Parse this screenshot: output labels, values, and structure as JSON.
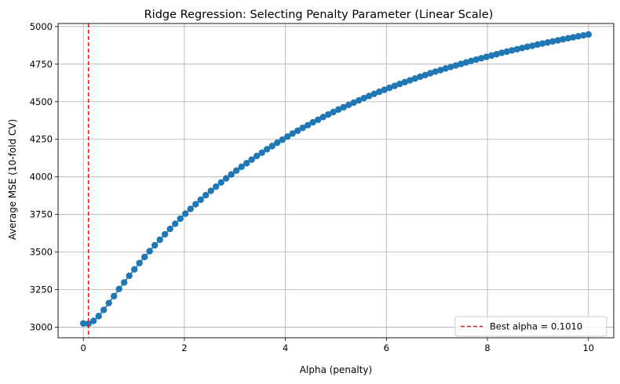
{
  "chart_data": {
    "type": "line",
    "title": "Ridge Regression: Selecting Penalty Parameter (Linear Scale)",
    "xlabel": "Alpha (penalty)",
    "ylabel": "Average MSE (10-fold CV)",
    "xlim": [
      -0.5,
      10.5
    ],
    "ylim": [
      2930,
      5020
    ],
    "grid": true,
    "legend_position": "lower-right",
    "x_ticks": [
      0,
      2,
      4,
      6,
      8,
      10
    ],
    "x_tick_labels": [
      "0",
      "2",
      "4",
      "6",
      "8",
      "10"
    ],
    "y_ticks": [
      3000,
      3250,
      3500,
      3750,
      4000,
      4250,
      4500,
      4750,
      5000
    ],
    "y_tick_labels": [
      "3000",
      "3250",
      "3500",
      "3750",
      "4000",
      "4250",
      "4500",
      "4750",
      "5000"
    ],
    "series": [
      {
        "color": "#1f77b4",
        "marker": "circle",
        "x": [
          0,
          0.1010101,
          0.2020202,
          0.3030303,
          0.4040404,
          0.5050505,
          0.6060606,
          0.7070707,
          0.8080808,
          0.9090909,
          1.010101,
          1.1111111,
          1.2121212,
          1.3131313,
          1.4141414,
          1.5151515,
          1.6161616,
          1.7171717,
          1.8181818,
          1.9191919,
          2.020202,
          2.1212121,
          2.2222222,
          2.3232323,
          2.4242424,
          2.5252525,
          2.6262626,
          2.7272727,
          2.8282828,
          2.9292929,
          3.030303,
          3.1313131,
          3.2323232,
          3.3333333,
          3.4343434,
          3.5353535,
          3.6363636,
          3.7373737,
          3.8383838,
          3.9393939,
          4.040404,
          4.1414141,
          4.2424242,
          4.3434343,
          4.4444444,
          4.5454545,
          4.6464646,
          4.7474747,
          4.8484848,
          4.9494949,
          5.0505051,
          5.1515152,
          5.2525253,
          5.3535354,
          5.4545455,
          5.5555556,
          5.6565657,
          5.7575758,
          5.8585859,
          5.959596,
          6.0606061,
          6.1616162,
          6.2626263,
          6.3636364,
          6.4646465,
          6.5656566,
          6.6666667,
          6.7676768,
          6.8686869,
          6.969697,
          7.0707071,
          7.1717172,
          7.2727273,
          7.3737374,
          7.4747475,
          7.5757576,
          7.6767677,
          7.7777778,
          7.8787879,
          7.979798,
          8.0808081,
          8.1818182,
          8.2828283,
          8.3838384,
          8.4848485,
          8.5858586,
          8.6868687,
          8.7878788,
          8.8888889,
          8.989899,
          9.0909091,
          9.1919192,
          9.2929293,
          9.3939394,
          9.4949495,
          9.5959596,
          9.6969697,
          9.7979798,
          9.8989899,
          10
        ],
        "values": [
          3025,
          3023,
          3042,
          3074,
          3115,
          3161,
          3207,
          3254,
          3298,
          3342,
          3385,
          3427,
          3467,
          3506,
          3545,
          3582,
          3618,
          3654,
          3688,
          3722,
          3755,
          3787,
          3818,
          3848,
          3878,
          3907,
          3935,
          3963,
          3990,
          4016,
          4042,
          4067,
          4091,
          4115,
          4139,
          4161,
          4184,
          4205,
          4227,
          4247,
          4268,
          4288,
          4307,
          4326,
          4344,
          4363,
          4380,
          4398,
          4415,
          4431,
          4448,
          4463,
          4479,
          4494,
          4509,
          4524,
          4538,
          4552,
          4566,
          4579,
          4592,
          4605,
          4618,
          4630,
          4642,
          4654,
          4666,
          4677,
          4689,
          4700,
          4710,
          4721,
          4731,
          4741,
          4751,
          4761,
          4771,
          4780,
          4789,
          4798,
          4807,
          4816,
          4825,
          4833,
          4841,
          4849,
          4857,
          4865,
          4872,
          4880,
          4887,
          4894,
          4901,
          4908,
          4915,
          4922,
          4928,
          4935,
          4941,
          4947
        ]
      }
    ],
    "best_alpha_line": {
      "x": 0.101,
      "color": "#e31a1c",
      "style": "dashed",
      "label": "Best alpha = 0.1010"
    }
  }
}
